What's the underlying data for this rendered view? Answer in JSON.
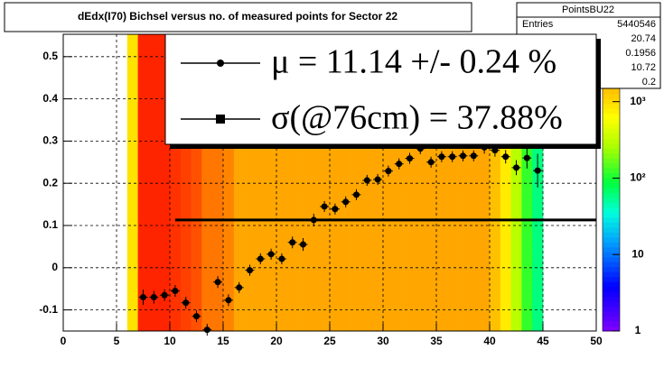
{
  "chart_data": {
    "type": "heatmap",
    "title": "dEdx(I70) Bichsel versus no. of measured points for Sector 22",
    "xlim": [
      0,
      50
    ],
    "ylim": [
      -0.15,
      0.553
    ],
    "xticks": [
      0,
      5,
      10,
      15,
      20,
      25,
      30,
      35,
      40,
      45,
      50
    ],
    "yticks": [
      -0.1,
      0,
      0.1,
      0.2,
      0.3,
      0.4,
      0.5
    ],
    "grid": true,
    "zlim": [
      1,
      7600
    ],
    "zlog": true,
    "zticks": [
      1,
      10,
      {
        "value": 100,
        "label": "10²"
      },
      {
        "value": 1000,
        "label": "10³"
      }
    ],
    "heatmap": {
      "bins": [
        6,
        7,
        8,
        9,
        10,
        11,
        12,
        13,
        14,
        15,
        16,
        17,
        18,
        19,
        20,
        21,
        22,
        23,
        24,
        25,
        26,
        27,
        28,
        29,
        30,
        31,
        32,
        33,
        34,
        35,
        36,
        37,
        38,
        39,
        40,
        41,
        42,
        43,
        44,
        45
      ],
      "counts": [
        900,
        6000,
        6000,
        6000,
        5500,
        5000,
        4500,
        3500,
        3500,
        3200,
        2500,
        2500,
        2500,
        2500,
        2500,
        2500,
        2500,
        2500,
        2500,
        2500,
        2500,
        2500,
        2500,
        2500,
        2500,
        2500,
        2500,
        2500,
        2500,
        2500,
        2500,
        2500,
        2500,
        2500,
        1500,
        800,
        300,
        120,
        60
      ]
    },
    "series": [
      {
        "name": "μ  = 11.14 +/-  0.24 %",
        "color": "#000000",
        "x": [
          7.5,
          8.5,
          9.5,
          10.5,
          11.5,
          12.5,
          13.5,
          14.5,
          15.5,
          16.5,
          17.5,
          18.5,
          19.5,
          20.5,
          21.5,
          22.5,
          23.5,
          24.5,
          25.5,
          26.5,
          27.5,
          28.5,
          29.5,
          30.5,
          31.5,
          32.5,
          33.5,
          34.5,
          35.5,
          36.5,
          37.5,
          38.5,
          39.5,
          40.5,
          41.5,
          42.5,
          43.5,
          44.5
        ],
        "values": [
          -0.07,
          -0.07,
          -0.065,
          -0.055,
          -0.083,
          -0.115,
          -0.147,
          -0.034,
          -0.077,
          -0.047,
          -0.006,
          0.021,
          0.032,
          0.021,
          0.06,
          0.055,
          0.113,
          0.145,
          0.139,
          0.156,
          0.173,
          0.207,
          0.209,
          0.229,
          0.246,
          0.259,
          0.282,
          0.25,
          0.263,
          0.263,
          0.265,
          0.265,
          0.285,
          0.278,
          0.263,
          0.237,
          0.26,
          0.23
        ],
        "errors": [
          0.018,
          0.015,
          0.014,
          0.014,
          0.014,
          0.014,
          0.014,
          0.014,
          0.014,
          0.013,
          0.013,
          0.013,
          0.013,
          0.013,
          0.014,
          0.015,
          0.015,
          0.013,
          0.013,
          0.013,
          0.013,
          0.013,
          0.013,
          0.013,
          0.013,
          0.013,
          0.013,
          0.013,
          0.013,
          0.013,
          0.013,
          0.013,
          0.015,
          0.015,
          0.016,
          0.018,
          0.025,
          0.04
        ]
      },
      {
        "name": "σ(@76cm) = 37.88%",
        "color": "#000000"
      }
    ],
    "fit": {
      "y": 0.113,
      "x": [
        10.5,
        50
      ]
    },
    "stats": {
      "title": "PointsBU22",
      "rows": [
        {
          "label": "Entries",
          "value": "5440546"
        },
        {
          "value": "20.74"
        },
        {
          "value": "0.1956"
        },
        {
          "value": "10.72"
        },
        {
          "value": "0.2"
        }
      ]
    }
  }
}
